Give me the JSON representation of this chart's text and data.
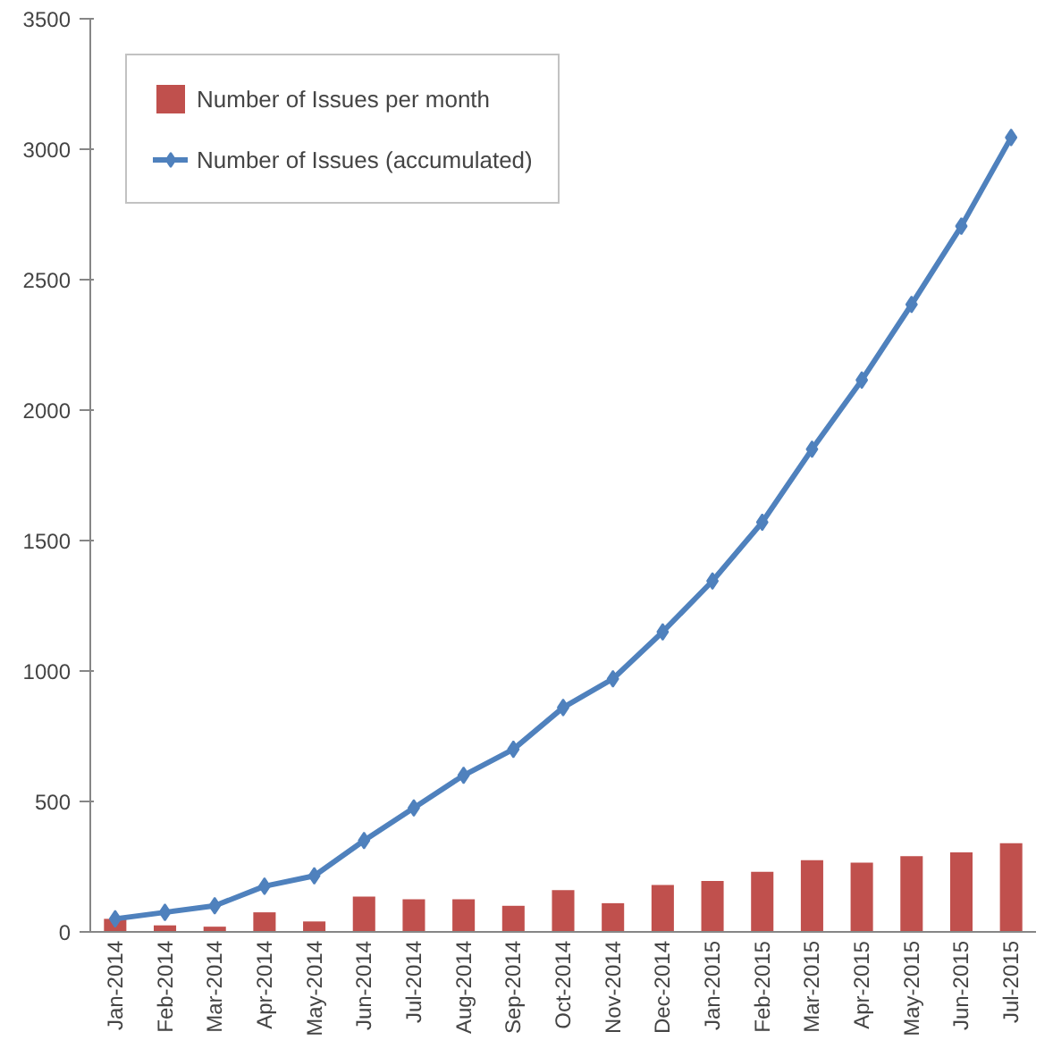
{
  "chart_data": {
    "type": "bar",
    "categories": [
      "Jan-2014",
      "Feb-2014",
      "Mar-2014",
      "Apr-2014",
      "May-2014",
      "Jun-2014",
      "Jul-2014",
      "Aug-2014",
      "Sep-2014",
      "Oct-2014",
      "Nov-2014",
      "Dec-2014",
      "Jan-2015",
      "Feb-2015",
      "Mar-2015",
      "Apr-2015",
      "May-2015",
      "Jun-2015",
      "Jul-2015"
    ],
    "series": [
      {
        "name": "Number of Issues per month",
        "color": "#c0504d",
        "values": [
          50,
          25,
          20,
          75,
          40,
          135,
          125,
          125,
          100,
          160,
          110,
          180,
          195,
          230,
          275,
          265,
          290,
          305,
          340
        ]
      },
      {
        "name": "Number of Issues (accumulated)",
        "type": "line",
        "color": "#4f81bd",
        "marker": "diamond",
        "values": [
          50,
          75,
          100,
          175,
          215,
          350,
          475,
          600,
          700,
          860,
          970,
          1150,
          1345,
          1570,
          1850,
          2115,
          2405,
          2705,
          3045
        ]
      }
    ],
    "ylim": [
      0,
      3500
    ],
    "yticks": [
      0,
      500,
      1000,
      1500,
      2000,
      2500,
      3000,
      3500
    ],
    "grid": false,
    "legend": "top left"
  }
}
